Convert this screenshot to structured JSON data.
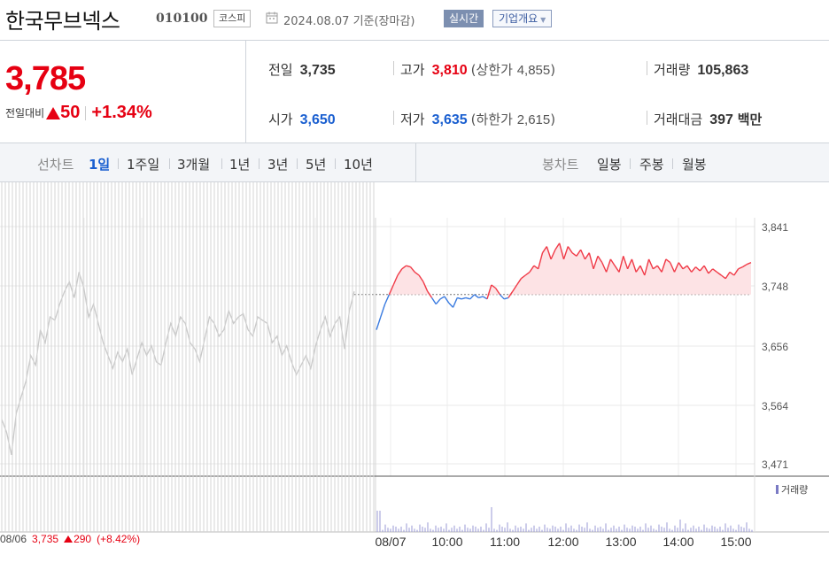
{
  "header": {
    "name": "한국무브넥스",
    "code": "010100",
    "market": "코스피",
    "date": "2024.08.07 기준(장마감)",
    "realtime": "실시간",
    "company_info": "기업개요"
  },
  "summary": {
    "price": "3,785",
    "change_label": "전일대비",
    "change": "50",
    "change_pct": "+1.34%",
    "prev_close": {
      "label": "전일",
      "value": "3,735"
    },
    "open": {
      "label": "시가",
      "value": "3,650"
    },
    "high": {
      "label": "고가",
      "value": "3,810",
      "limit_label": "상한가",
      "limit_value": "4,855"
    },
    "low": {
      "label": "저가",
      "value": "3,635",
      "limit_label": "하한가",
      "limit_value": "2,615"
    },
    "volume": {
      "label": "거래량",
      "value": "105,863"
    },
    "amount": {
      "label": "거래대금",
      "value": "397",
      "unit": "백만"
    }
  },
  "tabs": {
    "line_caption": "선차트",
    "periods": [
      "1일",
      "1주일",
      "3개월",
      "1년",
      "3년",
      "5년",
      "10년"
    ],
    "active": "1일",
    "candle_caption": "봉차트",
    "candles": [
      "일봉",
      "주봉",
      "월봉"
    ]
  },
  "chart_data": {
    "type": "line",
    "y_ticks": [
      "3,841",
      "3,748",
      "3,656",
      "3,564",
      "3,471"
    ],
    "x_ticks": [
      "08/07",
      "10:00",
      "11:00",
      "12:00",
      "13:00",
      "14:00",
      "15:00"
    ],
    "ylim": [
      3420,
      3870
    ],
    "baseline": 3735,
    "volume_legend": "거래량",
    "previous_day": {
      "date": "08/06",
      "close": "3,735",
      "change": "290",
      "change_pct": "(+8.42%)"
    },
    "previous_series": [
      3540,
      3520,
      3485,
      3550,
      3575,
      3600,
      3640,
      3625,
      3680,
      3660,
      3700,
      3695,
      3720,
      3740,
      3755,
      3730,
      3770,
      3745,
      3700,
      3720,
      3690,
      3660,
      3640,
      3620,
      3645,
      3630,
      3650,
      3610,
      3635,
      3660,
      3640,
      3655,
      3630,
      3625,
      3660,
      3690,
      3670,
      3700,
      3690,
      3660,
      3650,
      3630,
      3665,
      3700,
      3690,
      3670,
      3680,
      3710,
      3690,
      3700,
      3705,
      3680,
      3670,
      3700,
      3695,
      3690,
      3660,
      3670,
      3640,
      3655,
      3630,
      3610,
      3625,
      3640,
      3620,
      3655,
      3680,
      3700,
      3670,
      3690,
      3700,
      3650,
      3710,
      3740
    ],
    "today_series": [
      3680,
      3700,
      3720,
      3735,
      3750,
      3765,
      3775,
      3780,
      3778,
      3770,
      3765,
      3755,
      3740,
      3730,
      3720,
      3728,
      3732,
      3722,
      3715,
      3730,
      3728,
      3730,
      3728,
      3735,
      3730,
      3732,
      3728,
      3750,
      3745,
      3735,
      3728,
      3730,
      3740,
      3750,
      3760,
      3765,
      3770,
      3780,
      3775,
      3800,
      3810,
      3790,
      3805,
      3815,
      3790,
      3810,
      3800,
      3795,
      3805,
      3790,
      3800,
      3775,
      3795,
      3785,
      3770,
      3790,
      3780,
      3770,
      3795,
      3775,
      3790,
      3770,
      3780,
      3765,
      3790,
      3775,
      3780,
      3770,
      3790,
      3785,
      3770,
      3785,
      3775,
      3780,
      3770,
      3778,
      3772,
      3780,
      3768,
      3775,
      3770,
      3765,
      3760,
      3770,
      3765,
      3775,
      3778,
      3782,
      3785
    ]
  }
}
